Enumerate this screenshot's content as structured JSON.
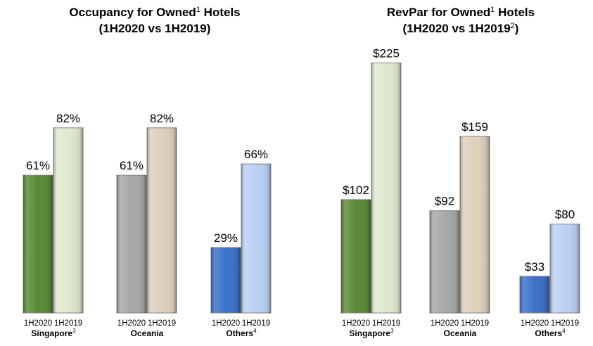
{
  "colors": {
    "singapore_2020": "#5a8a36",
    "singapore_2019": "#dde9cf",
    "oceania_2020": "#a8a8a8",
    "oceania_2019": "#ded0bd",
    "others_2020": "#3b70c9",
    "others_2019": "#bcd0f5"
  },
  "chart_data": [
    {
      "type": "bar",
      "title": {
        "line1_a": "Occupancy for Owned",
        "line1_sup": "1",
        "line1_b": " Hotels",
        "line2_a": "(1H2020 vs 1H2019)",
        "line2_sup": "",
        "line2_b": ""
      },
      "series_labels": [
        "1H2020",
        "1H2019"
      ],
      "unit": "%",
      "ylim": [
        0,
        100
      ],
      "groups": [
        {
          "name": "Singapore",
          "sup": "3",
          "values": [
            61,
            82
          ],
          "labels": [
            "61%",
            "82%"
          ],
          "colors": [
            "singapore_2020",
            "singapore_2019"
          ]
        },
        {
          "name": "Oceania",
          "sup": "",
          "values": [
            61,
            82
          ],
          "labels": [
            "61%",
            "82%"
          ],
          "colors": [
            "oceania_2020",
            "oceania_2019"
          ]
        },
        {
          "name": "Others",
          "sup": "4",
          "values": [
            29,
            66
          ],
          "labels": [
            "29%",
            "66%"
          ],
          "colors": [
            "others_2020",
            "others_2019"
          ]
        }
      ]
    },
    {
      "type": "bar",
      "title": {
        "line1_a": "RevPar for Owned",
        "line1_sup": "1",
        "line1_b": " Hotels",
        "line2_a": "(1H2020 vs 1H2019",
        "line2_sup": "2",
        "line2_b": ")"
      },
      "series_labels": [
        "1H2020",
        "1H2019"
      ],
      "unit": "$",
      "ylim": [
        0,
        250
      ],
      "groups": [
        {
          "name": "Singapore",
          "sup": "3",
          "values": [
            102,
            225
          ],
          "labels": [
            "$102",
            "$225"
          ],
          "colors": [
            "singapore_2020",
            "singapore_2019"
          ]
        },
        {
          "name": "Oceania",
          "sup": "",
          "values": [
            92,
            159
          ],
          "labels": [
            "$92",
            "$159"
          ],
          "colors": [
            "oceania_2020",
            "oceania_2019"
          ]
        },
        {
          "name": "Others",
          "sup": "4",
          "values": [
            33,
            80
          ],
          "labels": [
            "$33",
            "$80"
          ],
          "colors": [
            "others_2020",
            "others_2019"
          ]
        }
      ]
    }
  ]
}
